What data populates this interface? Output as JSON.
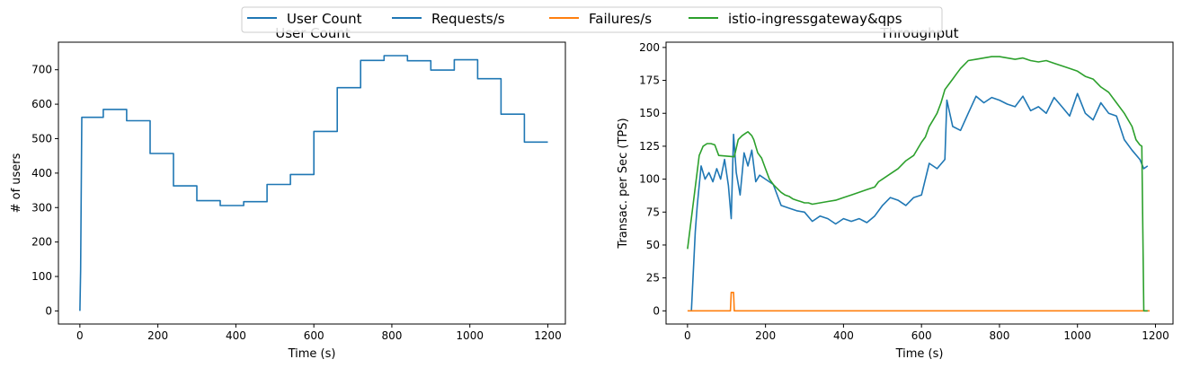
{
  "legend": {
    "placement": "top-center",
    "entries": [
      {
        "label": "User Count",
        "color": "#1f77b4"
      },
      {
        "label": "Requests/s",
        "color": "#1f77b4"
      },
      {
        "label": "Failures/s",
        "color": "#ff7f0e"
      },
      {
        "label": "istio-ingressgateway&qps",
        "color": "#2ca02c"
      }
    ]
  },
  "chart_data": [
    {
      "type": "line",
      "title": "User Count",
      "xlabel": "Time (s)",
      "ylabel": "# of users",
      "xlim": [
        -55,
        1245
      ],
      "ylim": [
        -38,
        780
      ],
      "xticks": [
        0,
        200,
        400,
        600,
        800,
        1000,
        1200
      ],
      "yticks": [
        0,
        100,
        200,
        300,
        400,
        500,
        600,
        700
      ],
      "grid": false,
      "series": [
        {
          "name": "User Count",
          "color": "#1f77b4",
          "x": [
            0,
            2,
            5,
            60,
            60,
            120,
            120,
            180,
            180,
            240,
            240,
            300,
            300,
            360,
            360,
            420,
            420,
            480,
            480,
            540,
            540,
            600,
            600,
            660,
            660,
            720,
            720,
            780,
            780,
            840,
            840,
            900,
            900,
            960,
            960,
            1020,
            1020,
            1080,
            1080,
            1140,
            1140,
            1200
          ],
          "y": [
            0,
            120,
            562,
            562,
            585,
            585,
            552,
            552,
            457,
            457,
            363,
            363,
            320,
            320,
            306,
            306,
            317,
            317,
            367,
            367,
            396,
            396,
            521,
            521,
            648,
            648,
            727,
            727,
            741,
            741,
            726,
            726,
            699,
            699,
            729,
            729,
            674,
            674,
            571,
            571,
            490,
            490
          ]
        }
      ]
    },
    {
      "type": "line",
      "title": "Throughput",
      "xlabel": "Time (s)",
      "ylabel": "Transac. per Sec (TPS)",
      "xlim": [
        -55,
        1245
      ],
      "ylim": [
        -10,
        204
      ],
      "xticks": [
        0,
        200,
        400,
        600,
        800,
        1000,
        1200
      ],
      "yticks": [
        0,
        25,
        50,
        75,
        100,
        125,
        150,
        175,
        200
      ],
      "grid": false,
      "series": [
        {
          "name": "Requests/s",
          "color": "#1f77b4",
          "x": [
            10,
            20,
            25,
            35,
            45,
            55,
            65,
            75,
            85,
            95,
            105,
            112,
            118,
            125,
            135,
            145,
            155,
            165,
            175,
            185,
            200,
            220,
            240,
            260,
            280,
            300,
            320,
            340,
            360,
            380,
            400,
            420,
            440,
            460,
            480,
            500,
            520,
            540,
            560,
            580,
            600,
            620,
            640,
            660,
            665,
            680,
            700,
            720,
            740,
            760,
            780,
            800,
            820,
            840,
            860,
            880,
            900,
            920,
            940,
            960,
            980,
            1000,
            1020,
            1040,
            1060,
            1080,
            1100,
            1120,
            1140,
            1160,
            1170,
            1180
          ],
          "y": [
            0,
            60,
            80,
            110,
            100,
            105,
            98,
            108,
            100,
            115,
            95,
            70,
            134,
            105,
            88,
            120,
            110,
            122,
            98,
            103,
            100,
            96,
            80,
            78,
            76,
            75,
            68,
            72,
            70,
            66,
            70,
            68,
            70,
            67,
            72,
            80,
            86,
            84,
            80,
            86,
            88,
            112,
            108,
            115,
            160,
            140,
            137,
            150,
            163,
            158,
            162,
            160,
            157,
            155,
            163,
            152,
            155,
            150,
            162,
            155,
            148,
            165,
            150,
            145,
            158,
            150,
            148,
            130,
            122,
            115,
            108,
            110
          ]
        },
        {
          "name": "Failures/s",
          "color": "#ff7f0e",
          "x": [
            0,
            110,
            112,
            118,
            120,
            1185
          ],
          "y": [
            0,
            0,
            14,
            14,
            0,
            0
          ]
        },
        {
          "name": "istio-ingressgateway&qps",
          "color": "#2ca02c",
          "x": [
            0,
            30,
            40,
            50,
            60,
            70,
            80,
            120,
            130,
            140,
            150,
            155,
            165,
            170,
            180,
            190,
            200,
            210,
            220,
            230,
            240,
            250,
            260,
            270,
            280,
            290,
            300,
            310,
            320,
            340,
            360,
            380,
            400,
            420,
            440,
            460,
            480,
            490,
            500,
            520,
            540,
            560,
            580,
            600,
            610,
            620,
            630,
            640,
            650,
            660,
            670,
            680,
            690,
            700,
            710,
            720,
            740,
            760,
            780,
            800,
            820,
            840,
            860,
            880,
            900,
            920,
            940,
            960,
            980,
            1000,
            1020,
            1040,
            1060,
            1080,
            1100,
            1120,
            1140,
            1150,
            1160,
            1165,
            1170,
            1180
          ],
          "y": [
            47,
            118,
            125,
            127,
            127,
            126,
            118,
            117,
            130,
            133,
            135,
            136,
            133,
            130,
            120,
            116,
            108,
            100,
            96,
            93,
            90,
            88,
            87,
            85,
            84,
            83,
            82,
            82,
            81,
            82,
            83,
            84,
            86,
            88,
            90,
            92,
            94,
            98,
            100,
            104,
            108,
            114,
            118,
            128,
            132,
            140,
            145,
            150,
            158,
            168,
            172,
            176,
            180,
            184,
            187,
            190,
            191,
            192,
            193,
            193,
            192,
            191,
            192,
            190,
            189,
            190,
            188,
            186,
            184,
            182,
            178,
            176,
            170,
            166,
            158,
            150,
            140,
            130,
            126,
            125,
            0,
            0
          ]
        }
      ]
    }
  ]
}
